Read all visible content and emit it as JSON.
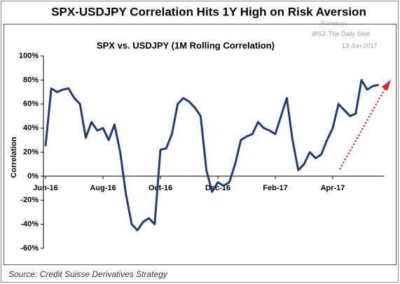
{
  "chart_data": {
    "type": "line",
    "title": "SPX-USDJPY Correlation Hits 1Y High on Risk Aversion",
    "subtitle": "SPX vs. USDJPY (1M Rolling Correlation)",
    "annotations": [
      "Posted on",
      "WSJ: The Daily Shot",
      "13-Jun-2017"
    ],
    "source": "Source: Credit Suisse Derivatives Strategy",
    "ylabel": "Correlation",
    "categories": [
      "Jun-16",
      null,
      null,
      null,
      null,
      null,
      null,
      null,
      null,
      null,
      "Aug-16",
      null,
      null,
      null,
      null,
      null,
      null,
      null,
      null,
      null,
      "Oct-16",
      null,
      null,
      null,
      null,
      null,
      null,
      null,
      null,
      null,
      "Dec-16",
      null,
      null,
      null,
      null,
      null,
      null,
      null,
      null,
      null,
      "Feb-17",
      null,
      null,
      null,
      null,
      null,
      null,
      null,
      null,
      null,
      "Apr-17",
      null,
      null,
      null,
      null,
      null,
      null,
      null,
      null
    ],
    "series": [
      {
        "name": "SPX vs. USDJPY",
        "color": "#1f3d7a",
        "values": [
          25,
          73,
          70,
          72,
          73,
          65,
          60,
          32,
          45,
          38,
          40,
          30,
          43,
          20,
          -15,
          -40,
          -45,
          -38,
          -35,
          -40,
          22,
          23,
          35,
          60,
          65,
          62,
          57,
          50,
          5,
          -13,
          -5,
          -8,
          -5,
          10,
          30,
          33,
          35,
          45,
          40,
          38,
          35,
          50,
          65,
          30,
          5,
          10,
          20,
          15,
          18,
          30,
          40,
          60,
          55,
          50,
          52,
          80,
          72,
          75,
          76
        ]
      }
    ],
    "ylim": [
      -60,
      100
    ],
    "yticks": [
      {
        "value": -60,
        "label": "-60%"
      },
      {
        "value": -40,
        "label": "-40%"
      },
      {
        "value": -20,
        "label": "-20%"
      },
      {
        "value": 0,
        "label": "0%"
      },
      {
        "value": 20,
        "label": "20%"
      },
      {
        "value": 40,
        "label": "40%"
      },
      {
        "value": 60,
        "label": "60%"
      },
      {
        "value": 80,
        "label": "80%"
      },
      {
        "value": 100,
        "label": "100%"
      }
    ],
    "grid": false
  }
}
